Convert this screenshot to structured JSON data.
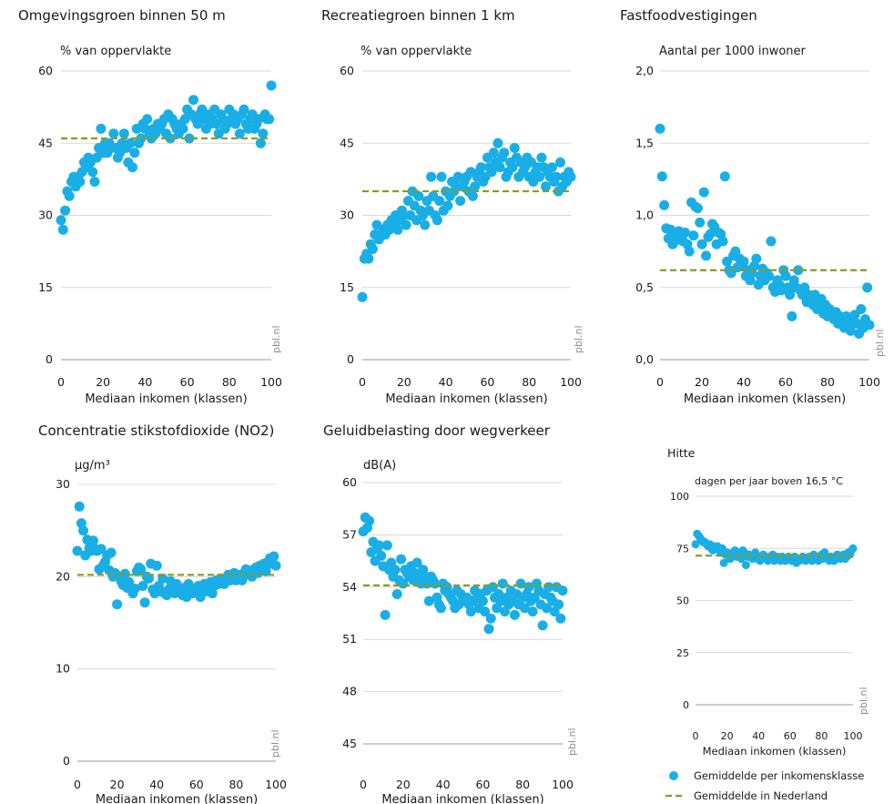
{
  "colors": {
    "dot": "#19aee5",
    "average": "#8c9a1e",
    "grid": "#d9d9d9"
  },
  "source_label": "pbl.nl",
  "legend": {
    "dot_label": "Gemiddelde per inkomensklasse",
    "line_label": "Gemiddelde in Nederland"
  },
  "chart_data": [
    {
      "type": "scatter",
      "title": "Omgevingsgroen binnen 50 m",
      "ylabel": "% van oppervlakte",
      "xlabel": "Mediaan inkomen (klassen)",
      "xlim": [
        0,
        100
      ],
      "ylim": [
        0,
        60
      ],
      "x_ticks": [
        "0",
        "20",
        "40",
        "60",
        "80",
        "100"
      ],
      "y_ticks": [
        "0",
        "15",
        "30",
        "45",
        "60"
      ],
      "average": 46,
      "series": [
        {
          "y": [
            29,
            27,
            31,
            35,
            34,
            37,
            38,
            36,
            38,
            37,
            39,
            41,
            40,
            42,
            41,
            39,
            37,
            42,
            44,
            48,
            43,
            45,
            43,
            45,
            44,
            47,
            44,
            42,
            43,
            45,
            47,
            44,
            41,
            45,
            40,
            43,
            48,
            45,
            46,
            49,
            48,
            50,
            47,
            46,
            48,
            47,
            49,
            48,
            49,
            50,
            47,
            51,
            46,
            50,
            49,
            48,
            47,
            49,
            48,
            50,
            52,
            46,
            51,
            54,
            50,
            49,
            51,
            52,
            50,
            48,
            51,
            49,
            50,
            52,
            49,
            47,
            51,
            50,
            48,
            49,
            52,
            50,
            51,
            49,
            50,
            47,
            51,
            52,
            49,
            48,
            50,
            51,
            48,
            49,
            50,
            45,
            47,
            51,
            50,
            50,
            57
          ]
        }
      ]
    },
    {
      "type": "scatter",
      "title": "Recreatiegroen binnen 1 km",
      "ylabel": "% van oppervlakte",
      "xlabel": "Mediaan inkomen (klassen)",
      "xlim": [
        0,
        100
      ],
      "ylim": [
        0,
        60
      ],
      "x_ticks": [
        "0",
        "20",
        "40",
        "60",
        "80",
        "100"
      ],
      "y_ticks": [
        "0",
        "15",
        "30",
        "45",
        "60"
      ],
      "average": 35,
      "series": [
        {
          "y": [
            13,
            21,
            22,
            21,
            24,
            23,
            26,
            28,
            25,
            26,
            27,
            26,
            28,
            27,
            29,
            28,
            30,
            27,
            29,
            31,
            30,
            28,
            33,
            30,
            35,
            32,
            29,
            34,
            31,
            30,
            28,
            33,
            31,
            38,
            34,
            30,
            29,
            33,
            38,
            31,
            35,
            32,
            34,
            37,
            35,
            36,
            38,
            33,
            36,
            37,
            38,
            35,
            39,
            34,
            36,
            38,
            39,
            40,
            37,
            38,
            42,
            40,
            39,
            43,
            41,
            45,
            40,
            42,
            43,
            38,
            39,
            41,
            40,
            44,
            42,
            38,
            41,
            39,
            40,
            42,
            38,
            41,
            37,
            39,
            40,
            38,
            42,
            40,
            36,
            39,
            38,
            40,
            37,
            38,
            35,
            41,
            36,
            38,
            37,
            39,
            38
          ]
        }
      ]
    },
    {
      "type": "scatter",
      "title": "Fastfoodvestigingen",
      "ylabel": "Aantal per 1000 inwoner",
      "xlabel": "Mediaan inkomen (klassen)",
      "xlim": [
        0,
        100
      ],
      "ylim": [
        0,
        2.0
      ],
      "x_ticks": [
        "0",
        "20",
        "40",
        "60",
        "80",
        "100"
      ],
      "y_ticks": [
        "0,0",
        "0,5",
        "1,0",
        "1,5",
        "2,0"
      ],
      "average": 0.62,
      "series": [
        {
          "y": [
            1.6,
            1.27,
            1.07,
            0.91,
            0.84,
            0.9,
            0.8,
            0.82,
            0.86,
            0.89,
            0.84,
            0.82,
            0.88,
            0.8,
            0.75,
            1.09,
            0.86,
            1.06,
            1.05,
            0.95,
            0.8,
            1.16,
            0.72,
            0.85,
            0.87,
            0.94,
            0.92,
            0.8,
            0.88,
            0.87,
            0.82,
            1.27,
            0.68,
            0.62,
            0.6,
            0.72,
            0.75,
            0.64,
            0.7,
            0.65,
            0.68,
            0.58,
            0.62,
            0.55,
            0.6,
            0.65,
            0.7,
            0.52,
            0.58,
            0.63,
            0.55,
            0.6,
            0.58,
            0.82,
            0.5,
            0.47,
            0.55,
            0.52,
            0.48,
            0.62,
            0.58,
            0.5,
            0.45,
            0.3,
            0.55,
            0.5,
            0.62,
            0.48,
            0.45,
            0.5,
            0.4,
            0.45,
            0.42,
            0.38,
            0.45,
            0.35,
            0.4,
            0.42,
            0.32,
            0.38,
            0.3,
            0.35,
            0.3,
            0.28,
            0.33,
            0.25,
            0.3,
            0.28,
            0.22,
            0.3,
            0.25,
            0.2,
            0.28,
            0.31,
            0.25,
            0.18,
            0.35,
            0.22,
            0.28,
            0.5,
            0.24
          ]
        }
      ]
    },
    {
      "type": "scatter",
      "title": "Concentratie stikstofdioxide (NO2)",
      "ylabel": "µg/m³",
      "xlabel": "Mediaan inkomen (klassen)",
      "xlim": [
        0,
        100
      ],
      "ylim": [
        0,
        30
      ],
      "x_ticks": [
        "0",
        "20",
        "40",
        "60",
        "80",
        "100"
      ],
      "y_ticks": [
        "0",
        "10",
        "20",
        "30"
      ],
      "average": 20.2,
      "series": [
        {
          "y": [
            22.8,
            27.6,
            25.8,
            25,
            22.3,
            24,
            23.1,
            22.8,
            23.9,
            23,
            22.8,
            20.8,
            23,
            21.2,
            21.6,
            22.3,
            20.7,
            22.6,
            20,
            20.4,
            17,
            20,
            19.5,
            19.1,
            20.3,
            18.8,
            19.4,
            18.6,
            18.2,
            18.7,
            20.6,
            21,
            20.8,
            19,
            17.2,
            20,
            19.8,
            21.4,
            18.6,
            18.2,
            21.2,
            19,
            18.4,
            19.8,
            18.2,
            18,
            18.6,
            19.5,
            18.6,
            18.2,
            19.2,
            18.8,
            18.4,
            18,
            18.8,
            17.8,
            19.2,
            18.6,
            18.2,
            18.4,
            18.8,
            19,
            17.8,
            18.6,
            19.2,
            18.4,
            18.8,
            19.4,
            18.2,
            19,
            19.6,
            19.2,
            19.8,
            19.4,
            19.2,
            19.8,
            20.2,
            19.6,
            19.8,
            20.4,
            19.6,
            20,
            20.2,
            19.6,
            20.4,
            20.8,
            20.2,
            20.6,
            20,
            20.8,
            21,
            20.4,
            21.2,
            20.8,
            21.4,
            20.6,
            21.6,
            22,
            21.4,
            22.2,
            21.2
          ]
        }
      ]
    },
    {
      "type": "scatter",
      "title": "Geluidbelasting door wegverkeer",
      "ylabel": "dB(A)",
      "xlabel": "Mediaan inkomen (klassen)",
      "xlim": [
        0,
        100
      ],
      "ylim": [
        45,
        60
      ],
      "x_ticks": [
        "0",
        "20",
        "40",
        "60",
        "80",
        "100"
      ],
      "y_ticks": [
        "45",
        "48",
        "51",
        "54",
        "57",
        "60"
      ],
      "average": 54.1,
      "series": [
        {
          "y": [
            57.2,
            58,
            57.4,
            57.8,
            56,
            56.6,
            55.5,
            56.2,
            56.4,
            55.8,
            55.2,
            52.4,
            56.4,
            55,
            55.4,
            54.6,
            55,
            53.6,
            54.4,
            55.6,
            54.2,
            55,
            54.8,
            54.6,
            55.2,
            54.4,
            54.8,
            55.4,
            54.6,
            54.2,
            55,
            54.6,
            54.2,
            53.2,
            54.6,
            54.4,
            54.2,
            53.4,
            53,
            52.8,
            54.2,
            53.8,
            54,
            53.6,
            53.4,
            53.2,
            52.8,
            53.8,
            53,
            53.6,
            53.4,
            53.2,
            53.4,
            53,
            52.6,
            53.2,
            53.8,
            53.4,
            52.8,
            53.6,
            53.2,
            52.6,
            53.8,
            51.6,
            52.2,
            54,
            53.4,
            52.8,
            53.6,
            53.2,
            54.2,
            52.6,
            53.4,
            53,
            53.8,
            53.2,
            52.4,
            53.6,
            53,
            54.2,
            53.4,
            52.8,
            53.6,
            54,
            53.2,
            52.6,
            53.4,
            54.2,
            53.8,
            53,
            51.8,
            53.6,
            52.8,
            54,
            53.4,
            53.2,
            52.6,
            54,
            53,
            52.2,
            53.8
          ]
        }
      ]
    },
    {
      "type": "scatter",
      "title": "Hitte",
      "ylabel": "dagen per jaar boven 16,5 °C",
      "xlabel": "Mediaan inkomen (klassen)",
      "xlim": [
        0,
        100
      ],
      "ylim": [
        0,
        100
      ],
      "x_ticks": [
        "0",
        "20",
        "40",
        "60",
        "80",
        "100"
      ],
      "y_ticks": [
        "0",
        "25",
        "50",
        "75",
        "100"
      ],
      "average": 71.5,
      "series": [
        {
          "y": [
            77,
            82,
            81,
            80,
            79,
            78,
            78,
            77,
            76,
            77,
            75,
            74,
            76,
            75,
            76,
            74,
            73,
            75,
            68,
            72,
            73,
            71,
            70,
            72,
            73,
            74,
            71,
            72,
            73,
            70,
            74,
            73,
            67,
            71,
            72,
            71,
            70,
            72,
            73,
            70,
            71,
            69,
            70,
            72,
            71,
            70,
            69,
            71,
            70,
            72,
            69,
            70,
            71,
            70,
            69,
            71,
            70,
            69,
            70,
            71,
            70,
            69,
            70,
            71,
            68,
            70,
            69,
            70,
            71,
            70,
            69,
            70,
            71,
            70,
            69,
            72,
            71,
            70,
            69,
            71,
            72,
            70,
            73,
            71,
            70,
            69,
            71,
            70,
            69,
            70,
            72,
            71,
            70,
            71,
            72,
            70,
            71,
            73,
            72,
            74,
            75
          ]
        }
      ]
    }
  ]
}
